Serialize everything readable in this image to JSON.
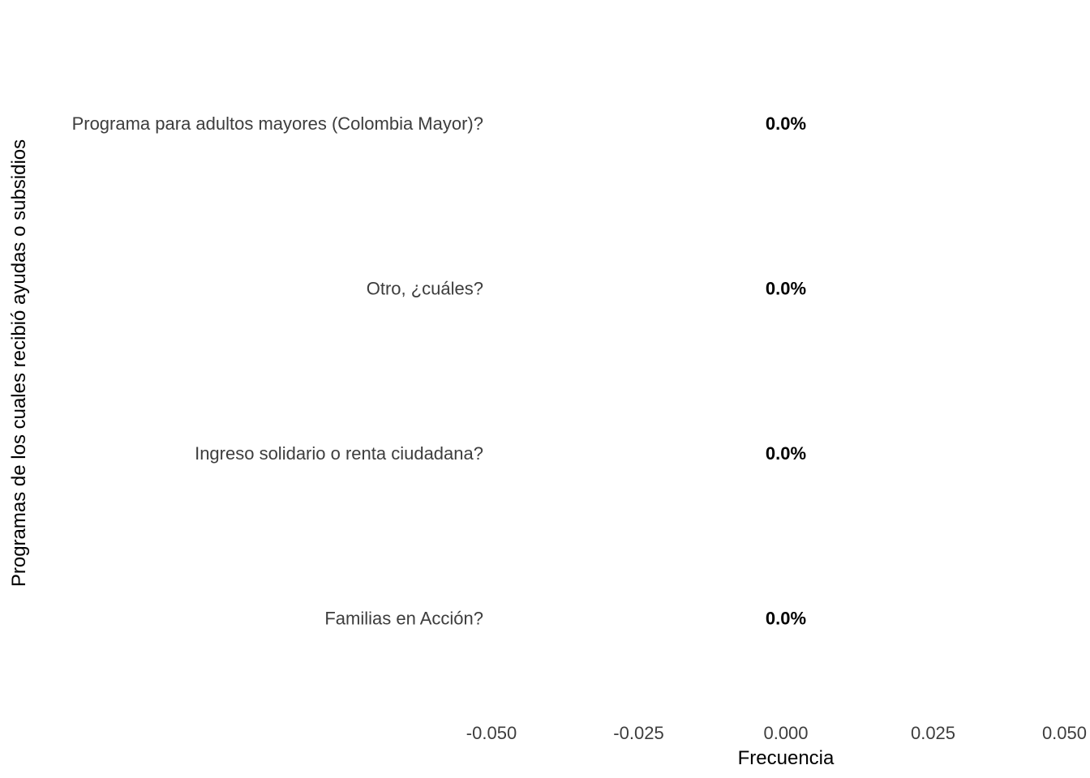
{
  "chart_data": {
    "type": "bar",
    "orientation": "horizontal",
    "title": "",
    "xlabel": "Frecuencia",
    "ylabel": "Programas de los cuales recibió ayudas o subsidios",
    "categories": [
      "Programa para adultos mayores (Colombia Mayor)?",
      "Otro, ¿cuáles?",
      "Ingreso solidario o renta ciudadana?",
      "Familias en Acción?"
    ],
    "values": [
      0,
      0,
      0,
      0
    ],
    "data_labels": [
      "0.0%",
      "0.0%",
      "0.0%",
      "0.0%"
    ],
    "xlim": [
      -0.05,
      0.05
    ],
    "x_ticks": [
      -0.05,
      -0.025,
      0,
      0.025,
      0.05
    ],
    "x_tick_labels": [
      "-0.050",
      "-0.025",
      "0.000",
      "0.025",
      "0.050"
    ],
    "grid": false,
    "legend": "none"
  }
}
